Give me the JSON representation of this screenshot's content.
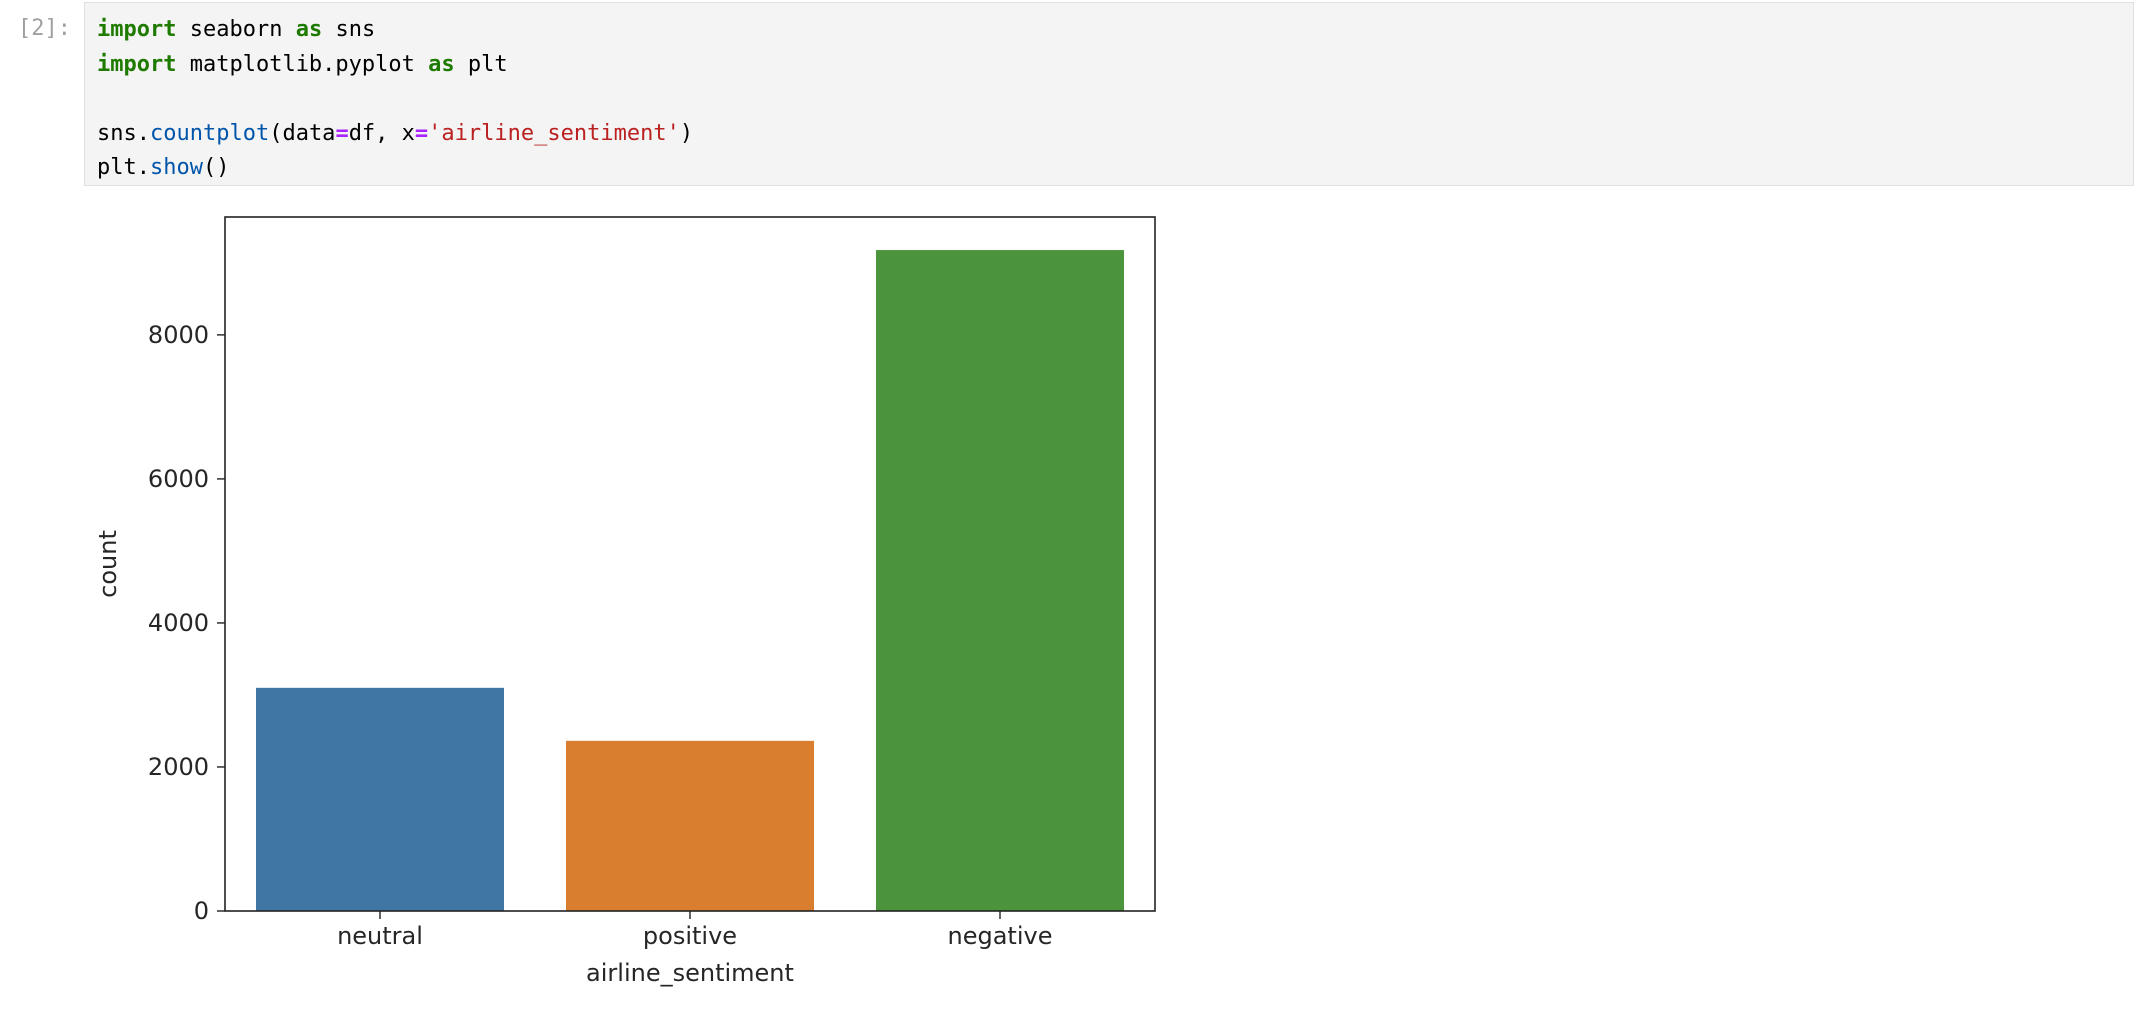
{
  "cell": {
    "prompt": "[2]:",
    "code_lines": [
      [
        {
          "t": "kw",
          "v": "import"
        },
        {
          "t": "",
          "v": " seaborn "
        },
        {
          "t": "kw",
          "v": "as"
        },
        {
          "t": "",
          "v": " sns"
        }
      ],
      [
        {
          "t": "kw",
          "v": "import"
        },
        {
          "t": "",
          "v": " matplotlib.pyplot "
        },
        {
          "t": "kw",
          "v": "as"
        },
        {
          "t": "",
          "v": " plt"
        }
      ],
      [],
      [
        {
          "t": "",
          "v": "sns."
        },
        {
          "t": "fn",
          "v": "countplot"
        },
        {
          "t": "",
          "v": "(data"
        },
        {
          "t": "op",
          "v": "="
        },
        {
          "t": "",
          "v": "df, x"
        },
        {
          "t": "op",
          "v": "="
        },
        {
          "t": "str",
          "v": "'airline_sentiment'"
        },
        {
          "t": "",
          "v": ")"
        }
      ],
      [
        {
          "t": "",
          "v": "plt."
        },
        {
          "t": "fn",
          "v": "show"
        },
        {
          "t": "",
          "v": "()"
        }
      ]
    ]
  },
  "chart_data": {
    "type": "bar",
    "categories": [
      "neutral",
      "positive",
      "negative"
    ],
    "values": [
      3099,
      2363,
      9178
    ],
    "colors": [
      "#3f76a3",
      "#d97e2e",
      "#4c943c"
    ],
    "title": "",
    "xlabel": "airline_sentiment",
    "ylabel": "count",
    "ylim": [
      0,
      9637
    ],
    "yticks": [
      0,
      2000,
      4000,
      6000,
      8000
    ],
    "grid": false
  }
}
